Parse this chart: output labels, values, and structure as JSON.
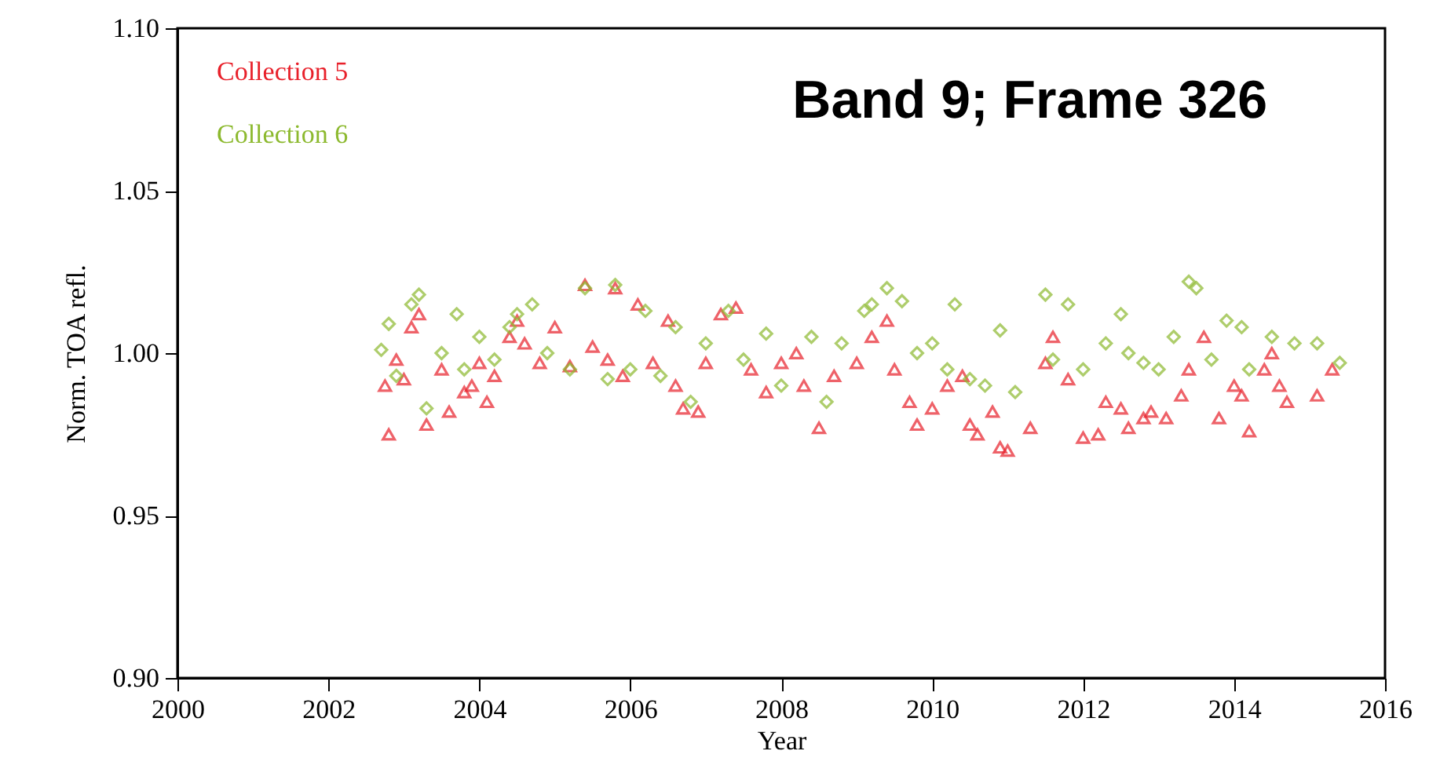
{
  "chart_data": {
    "type": "scatter",
    "xlabel": "Year",
    "ylabel": "Norm. TOA refl.",
    "annotations": [
      "Band 9; Frame 326"
    ],
    "xlim": [
      2000,
      2016
    ],
    "xticks": [
      2000,
      2002,
      2004,
      2006,
      2008,
      2010,
      2012,
      2014,
      2016
    ],
    "ylim": [
      0.9,
      1.1
    ],
    "yticks": [
      {
        "value": 0.9,
        "label": "0.90"
      },
      {
        "value": 0.95,
        "label": "0.95"
      },
      {
        "value": 1.0,
        "label": "1.00"
      },
      {
        "value": 1.05,
        "label": "1.05"
      },
      {
        "value": 1.1,
        "label": "1.10"
      }
    ],
    "grid": false,
    "legend": "top left",
    "series": [
      {
        "name": "Collection 5",
        "color": "#e8202a",
        "marker": "triangle",
        "x": [
          2002.75,
          2002.8,
          2002.9,
          2003.0,
          2003.1,
          2003.2,
          2003.3,
          2003.5,
          2003.6,
          2003.8,
          2003.9,
          2004.0,
          2004.1,
          2004.2,
          2004.4,
          2004.5,
          2004.6,
          2004.8,
          2005.0,
          2005.2,
          2005.4,
          2005.5,
          2005.7,
          2005.8,
          2005.9,
          2006.1,
          2006.3,
          2006.5,
          2006.6,
          2006.7,
          2006.9,
          2007.0,
          2007.2,
          2007.4,
          2007.6,
          2007.8,
          2008.0,
          2008.2,
          2008.3,
          2008.5,
          2008.7,
          2009.0,
          2009.2,
          2009.4,
          2009.5,
          2009.7,
          2009.8,
          2010.0,
          2010.2,
          2010.4,
          2010.5,
          2010.6,
          2010.8,
          2010.9,
          2011.0,
          2011.3,
          2011.5,
          2011.6,
          2011.8,
          2012.0,
          2012.2,
          2012.3,
          2012.5,
          2012.6,
          2012.8,
          2012.9,
          2013.1,
          2013.3,
          2013.4,
          2013.6,
          2013.8,
          2014.0,
          2014.1,
          2014.2,
          2014.4,
          2014.5,
          2014.6,
          2014.7,
          2015.1,
          2015.3
        ],
        "values": [
          0.99,
          0.975,
          0.998,
          0.992,
          1.008,
          1.012,
          0.978,
          0.995,
          0.982,
          0.988,
          0.99,
          0.997,
          0.985,
          0.993,
          1.005,
          1.01,
          1.003,
          0.997,
          1.008,
          0.996,
          1.021,
          1.002,
          0.998,
          1.02,
          0.993,
          1.015,
          0.997,
          1.01,
          0.99,
          0.983,
          0.982,
          0.997,
          1.012,
          1.014,
          0.995,
          0.988,
          0.997,
          1.0,
          0.99,
          0.977,
          0.993,
          0.997,
          1.005,
          1.01,
          0.995,
          0.985,
          0.978,
          0.983,
          0.99,
          0.993,
          0.978,
          0.975,
          0.982,
          0.971,
          0.97,
          0.977,
          0.997,
          1.005,
          0.992,
          0.974,
          0.975,
          0.985,
          0.983,
          0.977,
          0.98,
          0.982,
          0.98,
          0.987,
          0.995,
          1.005,
          0.98,
          0.99,
          0.987,
          0.976,
          0.995,
          1.0,
          0.99,
          0.985,
          0.987,
          0.995
        ]
      },
      {
        "name": "Collection 6",
        "color": "#8cb92e",
        "marker": "diamond",
        "x": [
          2002.7,
          2002.8,
          2002.9,
          2003.1,
          2003.2,
          2003.3,
          2003.5,
          2003.7,
          2003.8,
          2004.0,
          2004.2,
          2004.4,
          2004.5,
          2004.7,
          2004.9,
          2005.2,
          2005.4,
          2005.7,
          2005.8,
          2006.0,
          2006.2,
          2006.4,
          2006.6,
          2006.8,
          2007.0,
          2007.3,
          2007.5,
          2007.8,
          2008.0,
          2008.4,
          2008.6,
          2008.8,
          2009.1,
          2009.2,
          2009.4,
          2009.6,
          2009.8,
          2010.0,
          2010.2,
          2010.3,
          2010.5,
          2010.7,
          2010.9,
          2011.1,
          2011.5,
          2011.6,
          2011.8,
          2012.0,
          2012.3,
          2012.5,
          2012.6,
          2012.8,
          2013.0,
          2013.2,
          2013.4,
          2013.5,
          2013.7,
          2013.9,
          2014.1,
          2014.2,
          2014.5,
          2014.8,
          2015.1,
          2015.4
        ],
        "values": [
          1.001,
          1.009,
          0.993,
          1.015,
          1.018,
          0.983,
          1.0,
          1.012,
          0.995,
          1.005,
          0.998,
          1.008,
          1.012,
          1.015,
          1.0,
          0.995,
          1.02,
          0.992,
          1.021,
          0.995,
          1.013,
          0.993,
          1.008,
          0.985,
          1.003,
          1.013,
          0.998,
          1.006,
          0.99,
          1.005,
          0.985,
          1.003,
          1.013,
          1.015,
          1.02,
          1.016,
          1.0,
          1.003,
          0.995,
          1.015,
          0.992,
          0.99,
          1.007,
          0.988,
          1.018,
          0.998,
          1.015,
          0.995,
          1.003,
          1.012,
          1.0,
          0.997,
          0.995,
          1.005,
          1.022,
          1.02,
          0.998,
          1.01,
          1.008,
          0.995,
          1.005,
          1.003,
          1.003,
          0.997
        ]
      }
    ]
  }
}
